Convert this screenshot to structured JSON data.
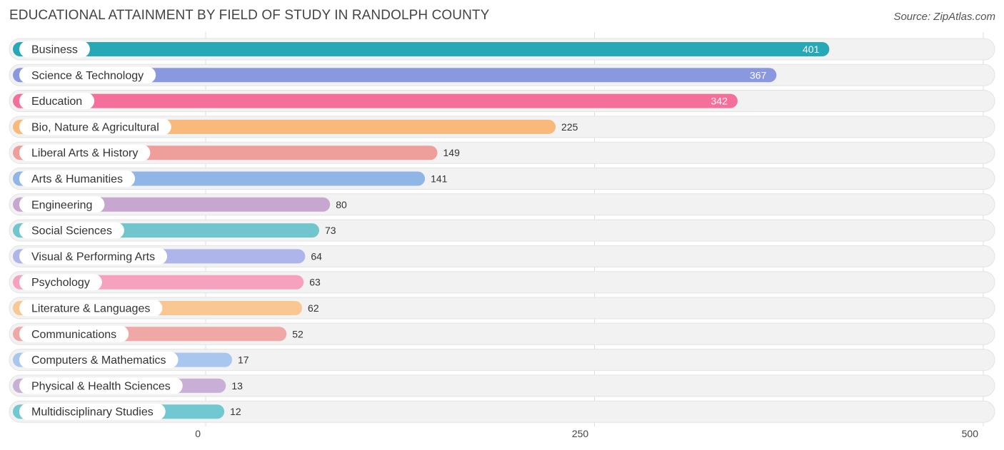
{
  "header": {
    "title": "EDUCATIONAL ATTAINMENT BY FIELD OF STUDY IN RANDOLPH COUNTY",
    "source": "Source: ZipAtlas.com"
  },
  "chart_data": {
    "type": "bar",
    "orientation": "horizontal",
    "title": "EDUCATIONAL ATTAINMENT BY FIELD OF STUDY IN RANDOLPH COUNTY",
    "xlabel": "",
    "ylabel": "",
    "xlim": [
      0,
      500
    ],
    "x_ticks": [
      0,
      250,
      500
    ],
    "grid": true,
    "categories": [
      "Business",
      "Science & Technology",
      "Education",
      "Bio, Nature & Agricultural",
      "Liberal Arts & History",
      "Arts & Humanities",
      "Engineering",
      "Social Sciences",
      "Visual & Performing Arts",
      "Psychology",
      "Literature & Languages",
      "Communications",
      "Computers & Mathematics",
      "Physical & Health Sciences",
      "Multidisciplinary Studies"
    ],
    "values": [
      401,
      367,
      342,
      225,
      149,
      141,
      80,
      73,
      64,
      63,
      62,
      52,
      17,
      13,
      12
    ],
    "colors": [
      "#27a8b7",
      "#8a98e0",
      "#f46f9a",
      "#f8b97b",
      "#ee9f9c",
      "#8fb6e6",
      "#c7a6cf",
      "#71c5cc",
      "#aeb5ea",
      "#f6a1bd",
      "#f9c792",
      "#f0a8a6",
      "#a8c6ee",
      "#c9afd6",
      "#72c8d0"
    ]
  }
}
